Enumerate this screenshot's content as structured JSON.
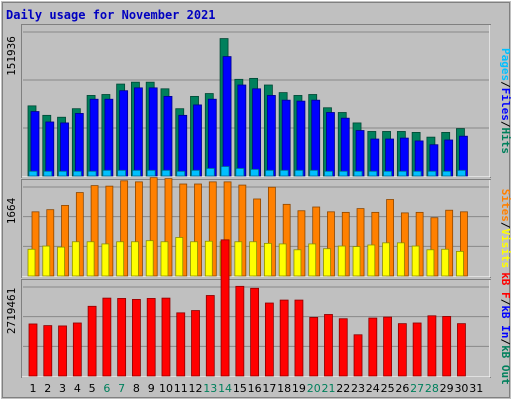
{
  "title": "Daily usage for November 2021",
  "colors": {
    "background": "#c0c0c0",
    "panel": "#c0c0c0",
    "title": "#0000c0",
    "hits": "#00805c",
    "files": "#0000ff",
    "pages": "#00c0ff",
    "visits": "#ffff00",
    "sites": "#ff8000",
    "kb_in": "#0000ff",
    "kb_out": "#00805c",
    "kb_f": "#ff0000",
    "weekend_label": "#00805c",
    "weekday_label": "#000000",
    "grid": "#888888"
  },
  "chart_data": {
    "type": "bar",
    "title": "Daily usage for November 2021",
    "categories": [
      "1",
      "2",
      "3",
      "4",
      "5",
      "6",
      "7",
      "8",
      "9",
      "10",
      "11",
      "12",
      "13",
      "14",
      "15",
      "16",
      "17",
      "18",
      "19",
      "20",
      "21",
      "22",
      "23",
      "24",
      "25",
      "26",
      "27",
      "28",
      "29",
      "30",
      "31"
    ],
    "weekend_days": [
      "6",
      "7",
      "13",
      "14",
      "20",
      "21",
      "27",
      "28"
    ],
    "grid": true,
    "panels": [
      {
        "id": "hits_files_pages",
        "ymax_label": "151936",
        "ymax": 151936,
        "right_label_parts": [
          {
            "text": "Pages",
            "color": "#00c0ff"
          },
          {
            "text": "/",
            "color": "#000000"
          },
          {
            "text": "Files",
            "color": "#0000ff"
          },
          {
            "text": "/",
            "color": "#000000"
          },
          {
            "text": "Hits",
            "color": "#00805c"
          }
        ],
        "series": [
          {
            "name": "Hits",
            "color": "#00805c",
            "values": [
              74000,
              64000,
              62000,
              71000,
              85000,
              86000,
              97000,
              99000,
              99000,
              92000,
              71000,
              84000,
              87000,
              145000,
              102000,
              103000,
              96000,
              88000,
              85000,
              86000,
              72000,
              67000,
              56000,
              47000,
              47000,
              47000,
              46000,
              41000,
              46000,
              50000,
              null
            ]
          },
          {
            "name": "Files",
            "color": "#0000ff",
            "values": [
              68000,
              57000,
              56000,
              66000,
              81000,
              81000,
              90000,
              93000,
              93000,
              84000,
              64000,
              75000,
              81000,
              126000,
              96000,
              92000,
              85000,
              80000,
              79000,
              80000,
              67000,
              61000,
              48000,
              39000,
              39000,
              40000,
              37000,
              33000,
              38000,
              42000,
              null
            ]
          },
          {
            "name": "Pages",
            "color": "#00c0ff",
            "values": [
              5000,
              5000,
              5000,
              5000,
              5000,
              6000,
              6000,
              6000,
              6000,
              6000,
              5000,
              6000,
              8000,
              10000,
              8000,
              7000,
              6000,
              6000,
              6000,
              6000,
              5000,
              5000,
              5000,
              5000,
              5000,
              5000,
              5000,
              5000,
              5000,
              6000,
              null
            ]
          }
        ]
      },
      {
        "id": "visits_sites",
        "ymax_label": "1664",
        "ymax": 1664,
        "right_label_parts": [
          {
            "text": "Sites",
            "color": "#ff8000"
          },
          {
            "text": "/",
            "color": "#000000"
          },
          {
            "text": "Visits",
            "color": "#ffff00"
          }
        ],
        "series": [
          {
            "name": "Sites",
            "color": "#ff8000",
            "values": [
              1200,
              1240,
              1320,
              1560,
              1690,
              1680,
              1780,
              1760,
              1840,
              1820,
              1720,
              1720,
              1760,
              1760,
              1700,
              1440,
              1660,
              1340,
              1220,
              1290,
              1200,
              1190,
              1260,
              1190,
              1430,
              1180,
              1190,
              1090,
              1230,
              1200,
              null
            ]
          },
          {
            "name": "Visits",
            "color": "#ffff00",
            "values": [
              500,
              560,
              540,
              640,
              640,
              600,
              640,
              640,
              660,
              640,
              720,
              640,
              650,
              640,
              640,
              640,
              610,
              600,
              490,
              600,
              510,
              560,
              550,
              580,
              620,
              620,
              560,
              490,
              500,
              460,
              null
            ]
          }
        ]
      },
      {
        "id": "kbytes",
        "ymax_label": "2719461",
        "ymax": 2719461,
        "right_label_parts": [
          {
            "text": "kB F",
            "color": "#ff0000"
          },
          {
            "text": "/",
            "color": "#000000"
          },
          {
            "text": "kB In",
            "color": "#0000ff"
          },
          {
            "text": "/",
            "color": "#000000"
          },
          {
            "text": "kB Out",
            "color": "#00805c"
          }
        ],
        "series": [
          {
            "name": "kB F",
            "color": "#ff0000",
            "values": [
              1590000,
              1540000,
              1530000,
              1620000,
              2130000,
              2380000,
              2370000,
              2340000,
              2370000,
              2380000,
              1930000,
              2000000,
              2460000,
              4160000,
              2740000,
              2680000,
              2230000,
              2320000,
              2320000,
              1790000,
              1880000,
              1750000,
              1260000,
              1770000,
              1800000,
              1600000,
              1620000,
              1840000,
              1820000,
              1600000,
              null
            ]
          }
        ]
      }
    ]
  }
}
